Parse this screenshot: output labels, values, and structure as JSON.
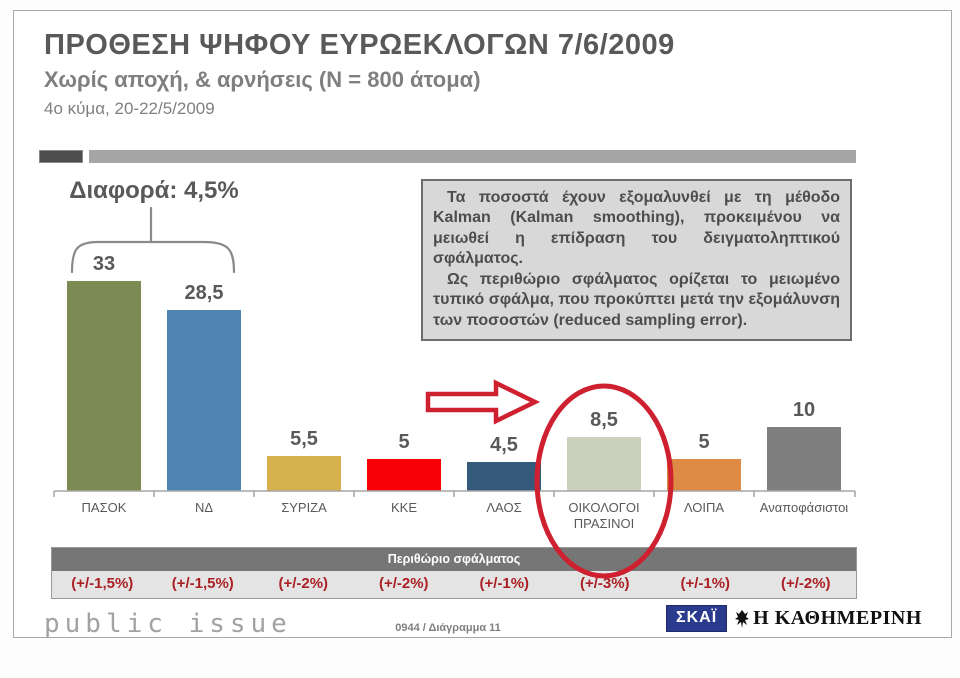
{
  "header": {
    "title": "ΠΡΟΘΕΣΗ ΨΗΦΟΥ ΕΥΡΩΕΚΛΟΓΩΝ 7/6/2009",
    "subtitle": "Χωρίς αποχή, & αρνήσεις (N = 800 άτομα)",
    "wave": "4ο κύμα, 20-22/5/2009"
  },
  "annotations": {
    "difference_label": "Διαφορά: 4,5%",
    "highlight_category": "ΟΙΚΟΛΟΓΟΙ ΠΡΑΣΙΝΟΙ"
  },
  "info_box": {
    "paragraphs": [
      "Τα ποσοστά έχουν εξομαλυνθεί με τη μέθοδο Kalman (Kalman smoothing), προκειμένου να μειωθεί η επίδραση του δειγματοληπτικού σφάλματος.",
      "Ως περιθώριο σφάλματος ορίζεται το μειωμένο τυπικό σφάλμα, που προκύπτει μετά την εξομάλυνση των ποσοστών (reduced sampling error)."
    ]
  },
  "chart_data": {
    "type": "bar",
    "title": "ΠΡΟΘΕΣΗ ΨΗΦΟΥ ΕΥΡΩΕΚΛΟΓΩΝ 7/6/2009",
    "categories": [
      "ΠΑΣΟΚ",
      "ΝΔ",
      "ΣΥΡΙΖΑ",
      "ΚΚΕ",
      "ΛΑΟΣ",
      "ΟΙΚΟΛΟΓΟΙ ΠΡΑΣΙΝΟΙ",
      "ΛΟΙΠΑ",
      "Αναποφάσιστοι"
    ],
    "values": [
      33,
      28.5,
      5.5,
      5,
      4.5,
      8.5,
      5,
      10
    ],
    "value_labels": [
      "33",
      "28,5",
      "5,5",
      "5",
      "4,5",
      "8,5",
      "5",
      "10"
    ],
    "bar_colors": [
      "#7c8a53",
      "#4f84b0",
      "#d7b14e",
      "#f80005",
      "#35597a",
      "#ccd1bd",
      "#df8a44",
      "#7f7f7f"
    ],
    "difference_note": "Διαφορά: 4,5%",
    "error_header": "Περιθώριο σφάλματος",
    "error_margins": [
      "(+/-1,5%)",
      "(+/-1,5%)",
      "(+/-2%)",
      "(+/-2%)",
      "(+/-1%)",
      "(+/-3%)",
      "(+/-1%)",
      "(+/-2%)"
    ],
    "xlabel": "",
    "ylabel": "",
    "ylim": [
      0,
      35
    ],
    "grid": false,
    "legend": "none"
  },
  "footer": {
    "brand": "public issue",
    "chart_ref": "0944 / Διάγραμμα 11",
    "skai_logo": "ΣΚΑΪ",
    "kathimerini_logo": "Η ΚΑΘΗΜΕΡΙΝΗ"
  },
  "colors": {
    "accent_red": "#cf2030",
    "error_text_red": "#ab2025",
    "title_gray": "#595959",
    "axis_gray": "#a6a6a6",
    "infobox_bg": "#d8d8d8",
    "table_header_bg": "#767676",
    "skai_blue": "#2a3b8e"
  }
}
